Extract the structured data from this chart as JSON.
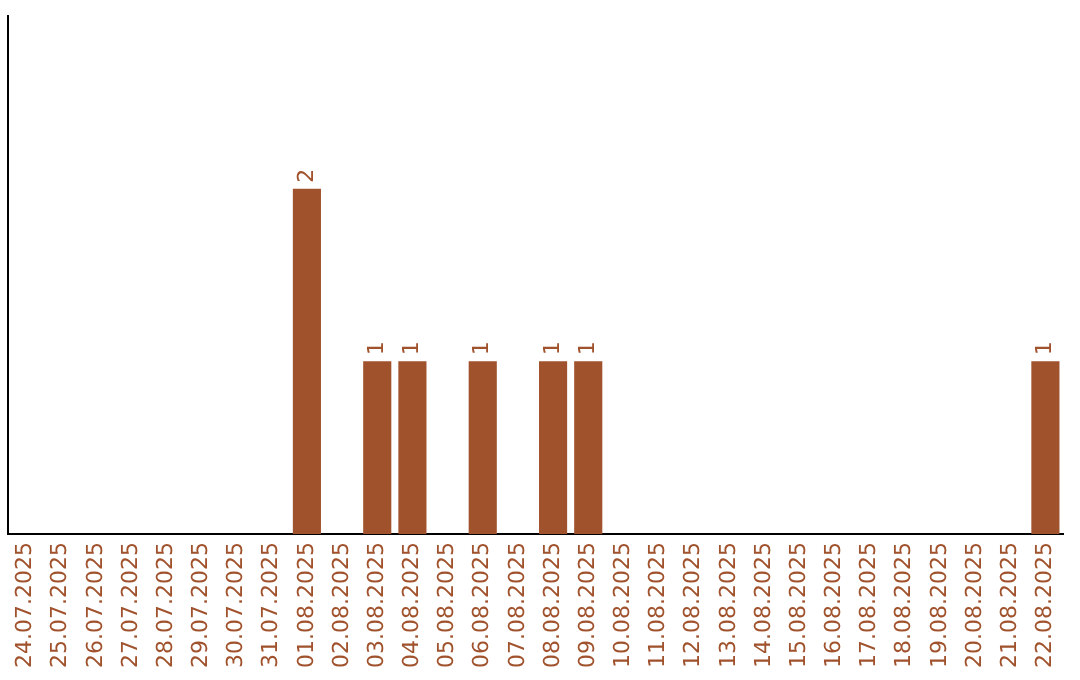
{
  "chart_data": {
    "type": "bar",
    "categories": [
      "24.07.2025",
      "25.07.2025",
      "26.07.2025",
      "27.07.2025",
      "28.07.2025",
      "29.07.2025",
      "30.07.2025",
      "31.07.2025",
      "01.08.2025",
      "02.08.2025",
      "03.08.2025",
      "04.08.2025",
      "05.08.2025",
      "06.08.2025",
      "07.08.2025",
      "08.08.2025",
      "09.08.2025",
      "10.08.2025",
      "11.08.2025",
      "12.08.2025",
      "13.08.2025",
      "14.08.2025",
      "15.08.2025",
      "16.08.2025",
      "17.08.2025",
      "18.08.2025",
      "19.08.2025",
      "20.08.2025",
      "21.08.2025",
      "22.08.2025"
    ],
    "values": [
      0,
      0,
      0,
      0,
      0,
      0,
      0,
      0,
      2,
      0,
      1,
      1,
      0,
      1,
      0,
      1,
      1,
      0,
      0,
      0,
      0,
      0,
      0,
      0,
      0,
      0,
      0,
      0,
      0,
      1
    ],
    "value_labels": [
      null,
      null,
      null,
      null,
      null,
      null,
      null,
      null,
      "2",
      null,
      "1",
      "1",
      null,
      "1",
      null,
      "1",
      "1",
      null,
      null,
      null,
      null,
      null,
      null,
      null,
      null,
      null,
      null,
      null,
      null,
      "1"
    ],
    "color": "#a0522d",
    "grid": false,
    "legend": false,
    "tick_labels": "x"
  }
}
